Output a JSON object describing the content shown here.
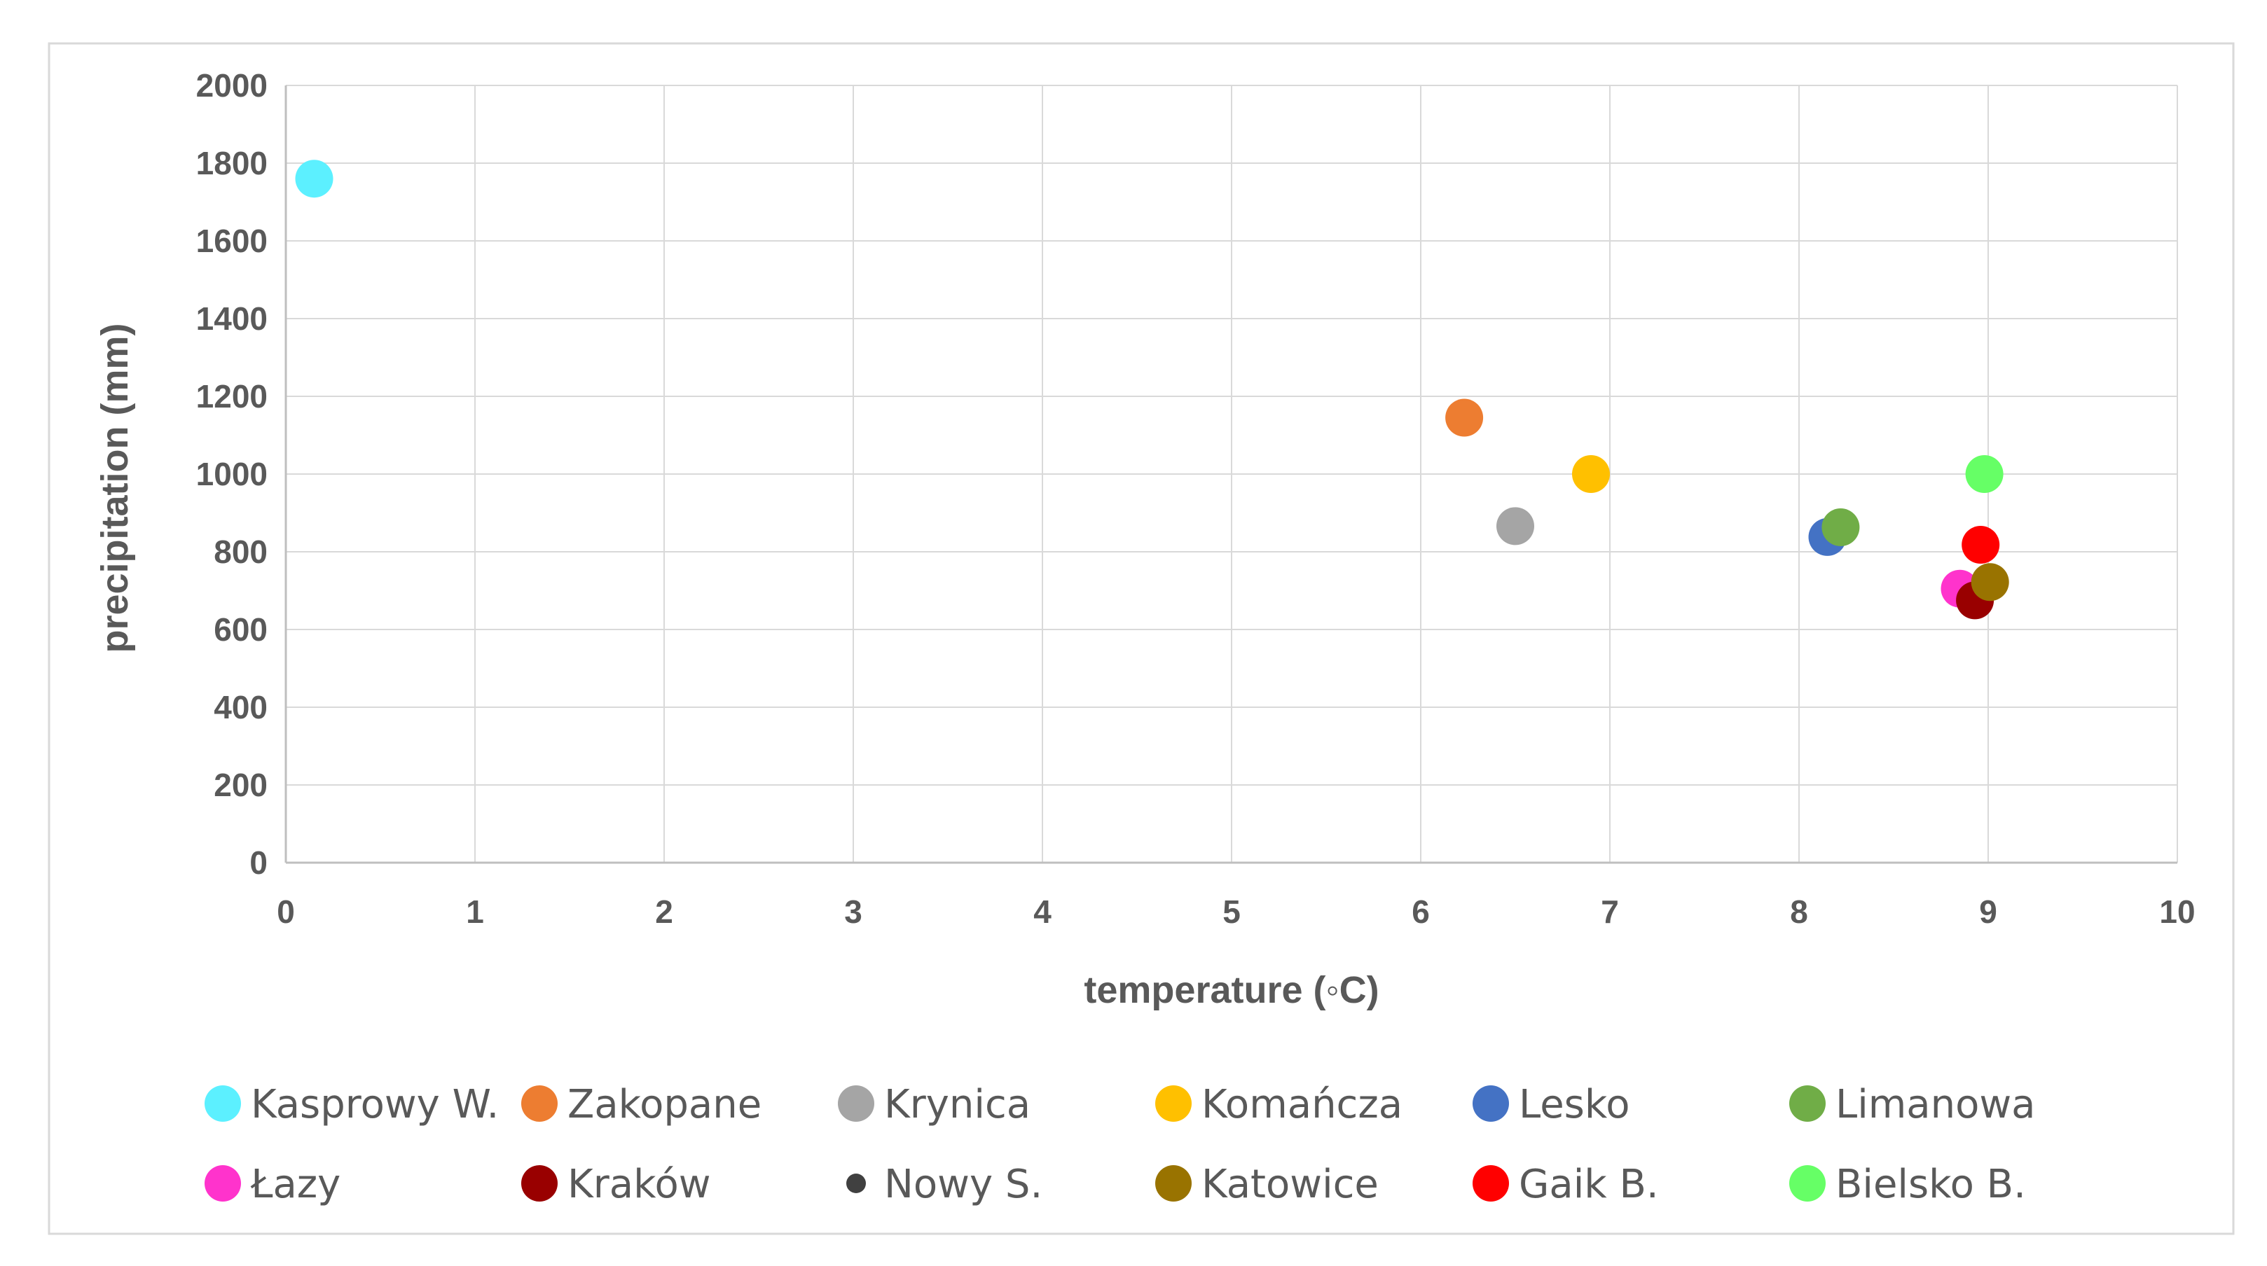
{
  "chart_data": {
    "type": "scatter",
    "title": "",
    "xlabel": "temperature (◦C)",
    "ylabel": "precipitation (mm)",
    "xlim": [
      0,
      10
    ],
    "ylim": [
      0,
      2000
    ],
    "x_ticks": [
      0,
      1,
      2,
      3,
      4,
      5,
      6,
      7,
      8,
      9,
      10
    ],
    "y_ticks": [
      0,
      200,
      400,
      600,
      800,
      1000,
      1200,
      1400,
      1600,
      1800,
      2000
    ],
    "grid": true,
    "legend_position": "bottom",
    "series": [
      {
        "name": "Kasprowy W.",
        "color": "#5CF0FF",
        "marker": "large",
        "points": [
          {
            "x": 0.15,
            "y": 1760
          }
        ]
      },
      {
        "name": "Zakopane",
        "color": "#ED7D31",
        "marker": "large",
        "points": [
          {
            "x": 6.23,
            "y": 1145
          }
        ]
      },
      {
        "name": "Krynica",
        "color": "#A5A5A5",
        "marker": "large",
        "points": [
          {
            "x": 6.5,
            "y": 866
          }
        ]
      },
      {
        "name": "Komańcza",
        "color": "#FFC000",
        "marker": "large",
        "points": [
          {
            "x": 6.9,
            "y": 1000
          }
        ]
      },
      {
        "name": "Lesko",
        "color": "#4472C4",
        "marker": "large",
        "points": [
          {
            "x": 8.15,
            "y": 838
          }
        ]
      },
      {
        "name": "Limanowa",
        "color": "#70AD47",
        "marker": "large",
        "points": [
          {
            "x": 8.22,
            "y": 863
          }
        ]
      },
      {
        "name": "Łazy",
        "color": "#FF33CC",
        "marker": "large",
        "points": [
          {
            "x": 8.85,
            "y": 705
          }
        ]
      },
      {
        "name": "Kraków",
        "color": "#990000",
        "marker": "large",
        "points": [
          {
            "x": 8.93,
            "y": 675
          }
        ]
      },
      {
        "name": "Nowy S.",
        "color": "#404040",
        "marker": "small",
        "points": []
      },
      {
        "name": "Katowice",
        "color": "#997300",
        "marker": "large",
        "points": [
          {
            "x": 9.01,
            "y": 722
          }
        ]
      },
      {
        "name": "Gaik B.",
        "color": "#FF0000",
        "marker": "large",
        "points": [
          {
            "x": 8.96,
            "y": 818
          }
        ]
      },
      {
        "name": "Bielsko B.",
        "color": "#66FF66",
        "marker": "large",
        "points": [
          {
            "x": 8.98,
            "y": 1000
          }
        ]
      }
    ]
  }
}
